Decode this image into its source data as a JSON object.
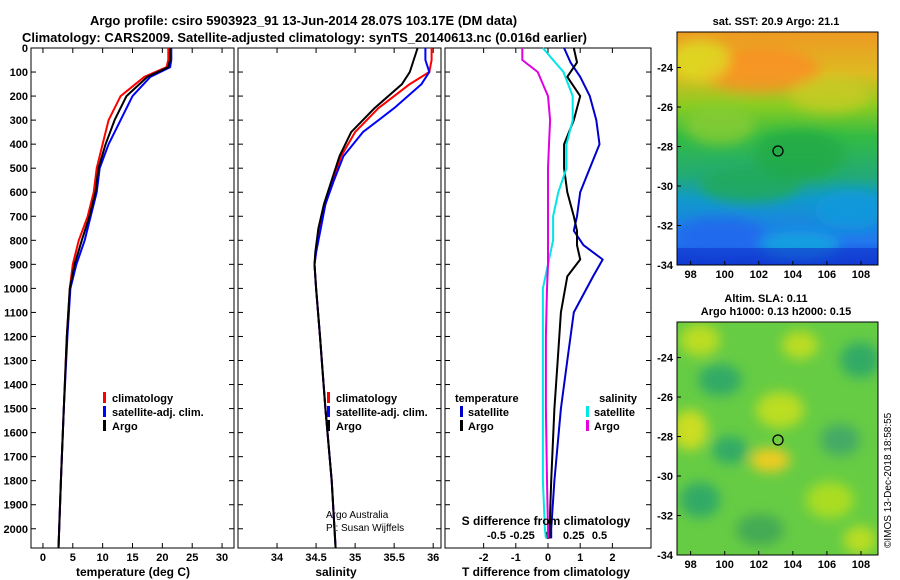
{
  "header": {
    "line1": "Argo profile: csiro 5903923_91 13-Jun-2014 28.07S 103.17E (DM data)",
    "line2": "Climatology: CARS2009. Satellite-adjusted climatology: synTS_20140613.nc (0.016d earlier)"
  },
  "colors": {
    "climatology": "#ff0000",
    "satellite_adj": "#0000ff",
    "argo": "#000000",
    "satellite_t": "#0000cc",
    "satellite_s": "#00e5e5",
    "argo_s": "#e000e0"
  },
  "depth_axis": {
    "ticks": [
      0,
      100,
      200,
      300,
      400,
      500,
      600,
      700,
      800,
      900,
      1000,
      1100,
      1200,
      1300,
      1400,
      1500,
      1600,
      1700,
      1800,
      1900,
      2000
    ],
    "range": [
      0,
      2080
    ]
  },
  "chart_data": [
    {
      "type": "line",
      "name": "temperature",
      "xlabel": "temperature (deg C)",
      "xlim": [
        -2,
        32
      ],
      "xticks": [
        0,
        5,
        10,
        15,
        20,
        25,
        30
      ],
      "ylim": [
        0,
        2080
      ],
      "legend": [
        "climatology",
        "satellite-adj. clim.",
        "Argo"
      ],
      "series": [
        {
          "name": "climatology",
          "key": "climatology",
          "x": [
            21,
            21,
            20.7,
            17,
            13,
            11,
            10,
            9,
            8.5,
            7.5,
            6,
            5,
            4.5,
            4,
            3.5,
            3,
            2.6
          ],
          "y": [
            0,
            50,
            80,
            120,
            200,
            300,
            400,
            500,
            600,
            700,
            800,
            900,
            1000,
            1200,
            1500,
            1800,
            2080
          ]
        },
        {
          "name": "satellite-adj. clim.",
          "key": "satellite_adj",
          "x": [
            21.5,
            21.5,
            21.3,
            18,
            15,
            13,
            11,
            9.5,
            9,
            8,
            7,
            5.6,
            4.6,
            4.1,
            3.5,
            3,
            2.6
          ],
          "y": [
            0,
            50,
            80,
            120,
            200,
            300,
            400,
            500,
            600,
            700,
            800,
            900,
            1000,
            1200,
            1500,
            1800,
            2080
          ]
        },
        {
          "name": "Argo",
          "key": "argo",
          "x": [
            21.3,
            21.3,
            21,
            17.5,
            14,
            12,
            10.5,
            9.3,
            8.8,
            7.8,
            6.5,
            5.3,
            4.5,
            4,
            3.5,
            3,
            2.6
          ],
          "y": [
            0,
            50,
            80,
            120,
            200,
            300,
            400,
            500,
            600,
            700,
            800,
            900,
            1000,
            1200,
            1500,
            1800,
            2080
          ]
        }
      ]
    },
    {
      "type": "line",
      "name": "salinity",
      "xlabel": "salinity",
      "xlim": [
        33.5,
        36.1
      ],
      "xticks": [
        34,
        34.5,
        35,
        35.5,
        36
      ],
      "xtick_labels": [
        "34",
        "34.5",
        "35",
        "35.5",
        "36"
      ],
      "ylim": [
        0,
        2080
      ],
      "legend": [
        "climatology",
        "satellite-adj. clim.",
        "Argo"
      ],
      "notes": [
        "Argo Australia",
        "PI: Susan Wijffels"
      ],
      "series": [
        {
          "name": "climatology",
          "key": "climatology",
          "x": [
            35.98,
            35.98,
            35.95,
            35.7,
            35.3,
            35.0,
            34.82,
            34.72,
            34.62,
            34.55,
            34.5,
            34.48,
            34.5,
            34.55,
            34.62,
            34.7,
            34.75
          ],
          "y": [
            0,
            50,
            100,
            150,
            250,
            350,
            450,
            550,
            650,
            750,
            850,
            900,
            1000,
            1200,
            1500,
            1800,
            2080
          ]
        },
        {
          "name": "satellite-adj. clim.",
          "key": "satellite_adj",
          "x": [
            35.9,
            35.9,
            35.95,
            35.85,
            35.5,
            35.1,
            34.85,
            34.73,
            34.62,
            34.56,
            34.5,
            34.48,
            34.5,
            34.55,
            34.62,
            34.7,
            34.75
          ],
          "y": [
            0,
            50,
            100,
            150,
            250,
            350,
            450,
            550,
            650,
            750,
            850,
            900,
            1000,
            1200,
            1500,
            1800,
            2080
          ]
        },
        {
          "name": "Argo",
          "key": "argo",
          "x": [
            35.8,
            35.75,
            35.7,
            35.6,
            35.25,
            34.95,
            34.8,
            34.7,
            34.6,
            34.53,
            34.49,
            34.48,
            34.5,
            34.55,
            34.62,
            34.7,
            34.75
          ],
          "y": [
            0,
            50,
            100,
            150,
            250,
            350,
            450,
            550,
            650,
            750,
            850,
            900,
            1000,
            1200,
            1500,
            1800,
            2080
          ]
        }
      ]
    },
    {
      "type": "line",
      "name": "differences",
      "xlabel": "T difference from climatology",
      "xlabel_top": "S difference from climatology",
      "xlim": [
        -3.2,
        3.2
      ],
      "xticks": [
        -2,
        -1,
        0,
        1,
        2
      ],
      "s_ticks": [
        -0.5,
        -0.25,
        0,
        0.25,
        0.5
      ],
      "s_tick_labels": [
        "-0.5",
        "-0.25",
        "0",
        "0.25",
        "0.5"
      ],
      "ylim": [
        0,
        2080
      ],
      "legend_temperature_title": "temperature",
      "legend_salinity_title": "salinity",
      "legend_temperature": [
        "satellite",
        "Argo"
      ],
      "legend_salinity": [
        "satellite",
        "Argo"
      ],
      "series": [
        {
          "name": "T satellite",
          "key": "satellite_t",
          "x": [
            0.5,
            0.7,
            1.0,
            1.3,
            1.5,
            1.6,
            1.3,
            1.0,
            0.9,
            0.8,
            1.1,
            1.7,
            1.4,
            0.8,
            0.6,
            0.4,
            0.2,
            0.1,
            0.1
          ],
          "y": [
            0,
            60,
            120,
            200,
            300,
            400,
            500,
            600,
            700,
            760,
            820,
            880,
            950,
            1100,
            1300,
            1500,
            1800,
            2000,
            2040
          ]
        },
        {
          "name": "T Argo",
          "key": "argo",
          "x": [
            0.8,
            0.9,
            0.6,
            1.0,
            0.8,
            0.5,
            0.5,
            0.6,
            0.8,
            0.9,
            0.9,
            1.0,
            0.6,
            0.4,
            0.3,
            0.2,
            0.1,
            0.05,
            0.05
          ],
          "y": [
            0,
            60,
            120,
            200,
            300,
            400,
            500,
            600,
            700,
            760,
            820,
            880,
            950,
            1100,
            1300,
            1500,
            1800,
            2000,
            2040
          ]
        },
        {
          "name": "S satellite",
          "key": "satellite_s",
          "x": [
            -0.05,
            0.05,
            0.15,
            0.24,
            0.24,
            0.18,
            0.18,
            0.1,
            0.05,
            0.05,
            0.0,
            -0.05,
            -0.05,
            -0.05,
            -0.05,
            -0.03,
            -0.02
          ],
          "y": [
            0,
            50,
            100,
            200,
            300,
            400,
            500,
            600,
            700,
            800,
            900,
            1000,
            1200,
            1500,
            1800,
            2000,
            2040
          ]
        },
        {
          "name": "S Argo",
          "key": "argo_s",
          "x": [
            -0.25,
            -0.25,
            -0.1,
            0.0,
            0.02,
            0.01,
            0.0,
            0.0,
            0.0,
            0.0,
            0.0,
            -0.01,
            -0.02,
            -0.02,
            -0.01,
            0.0,
            0.0
          ],
          "y": [
            0,
            50,
            100,
            200,
            300,
            400,
            500,
            600,
            700,
            800,
            900,
            1000,
            1200,
            1500,
            1800,
            2000,
            2040
          ]
        }
      ]
    },
    {
      "type": "heatmap",
      "name": "sst_map",
      "title": "sat. SST: 20.9 Argo: 21.1",
      "xticks": [
        98,
        100,
        102,
        104,
        106,
        108
      ],
      "yticks": [
        -24,
        -26,
        -28,
        -30,
        -32,
        -34
      ],
      "xlim": [
        97.2,
        109
      ],
      "ylim": [
        -34,
        -22.2
      ],
      "marker": {
        "lon": 103.17,
        "lat": -28.07
      }
    },
    {
      "type": "heatmap",
      "name": "sla_map",
      "title": "Altim. SLA: 0.11",
      "subtitle": "Argo h1000: 0.13 h2000: 0.15",
      "xticks": [
        98,
        100,
        102,
        104,
        106,
        108
      ],
      "yticks": [
        -24,
        -26,
        -28,
        -30,
        -32,
        -34
      ],
      "xlim": [
        97.2,
        109
      ],
      "ylim": [
        -34,
        -22.2
      ],
      "marker": {
        "lon": 103.17,
        "lat": -28.07
      }
    }
  ],
  "footer": {
    "stamp": "©IMOS 13-Dec-2018 18:58:55"
  }
}
